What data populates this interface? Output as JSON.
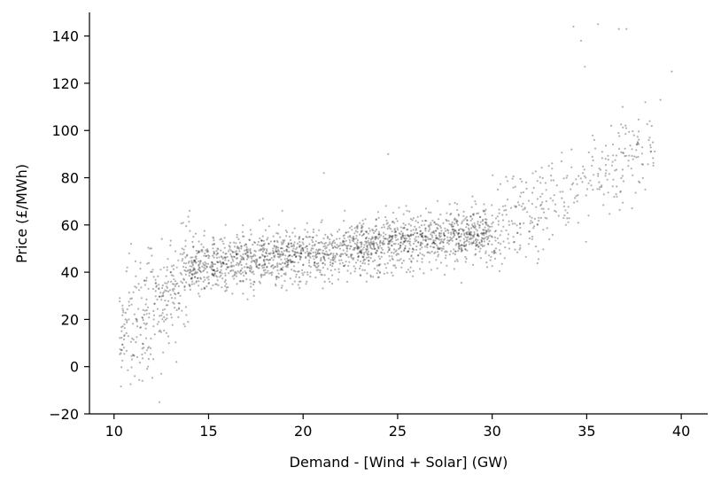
{
  "chart_data": {
    "type": "scatter",
    "title": "",
    "xlabel": "Demand - [Wind + Solar] (GW)",
    "ylabel": "Price (£/MWh)",
    "xlim": [
      8.7,
      41.4
    ],
    "ylim": [
      -20,
      150
    ],
    "xticks": [
      10,
      15,
      20,
      25,
      30,
      35,
      40
    ],
    "yticks": [
      -20,
      0,
      20,
      40,
      60,
      80,
      100,
      120,
      140
    ],
    "xtick_labels": [
      "10",
      "15",
      "20",
      "25",
      "30",
      "35",
      "40"
    ],
    "ytick_labels": [
      "−20",
      "0",
      "20",
      "40",
      "60",
      "80",
      "100",
      "120",
      "140"
    ],
    "spines": "left-bottom",
    "grid": false,
    "marker_color": "#000000",
    "marker_alpha": 0.3,
    "approx_point_count": 2500,
    "points": [
      [
        10.3,
        29
      ],
      [
        10.4,
        15
      ],
      [
        10.5,
        23
      ],
      [
        10.6,
        20
      ],
      [
        10.7,
        42
      ],
      [
        10.8,
        48
      ],
      [
        10.9,
        52
      ],
      [
        11.0,
        5
      ],
      [
        11.1,
        -4
      ],
      [
        11.2,
        20
      ],
      [
        11.3,
        35
      ],
      [
        11.4,
        44
      ],
      [
        11.5,
        -6
      ],
      [
        11.6,
        22
      ],
      [
        11.7,
        12
      ],
      [
        11.8,
        0
      ],
      [
        11.9,
        50
      ],
      [
        12.0,
        47
      ],
      [
        12.1,
        38
      ],
      [
        12.2,
        32
      ],
      [
        12.3,
        18
      ],
      [
        12.4,
        -15
      ],
      [
        12.5,
        -3
      ],
      [
        12.6,
        6
      ],
      [
        12.7,
        28
      ],
      [
        12.8,
        22
      ],
      [
        12.9,
        10
      ],
      [
        13.0,
        40
      ],
      [
        13.1,
        35
      ],
      [
        13.2,
        25
      ],
      [
        13.3,
        2
      ],
      [
        13.4,
        45
      ],
      [
        13.5,
        30
      ],
      [
        13.6,
        50
      ],
      [
        13.7,
        18
      ],
      [
        13.8,
        42
      ],
      [
        14.0,
        66
      ],
      [
        14.2,
        55
      ],
      [
        14.4,
        48
      ],
      [
        14.6,
        40
      ],
      [
        14.8,
        33
      ],
      [
        15.0,
        46
      ],
      [
        15.3,
        52
      ],
      [
        15.6,
        38
      ],
      [
        15.9,
        60
      ],
      [
        16.2,
        44
      ],
      [
        16.5,
        35
      ],
      [
        16.8,
        57
      ],
      [
        17.1,
        47
      ],
      [
        17.4,
        30
      ],
      [
        17.7,
        62
      ],
      [
        18.0,
        41
      ],
      [
        18.3,
        53
      ],
      [
        18.6,
        38
      ],
      [
        18.9,
        66
      ],
      [
        19.2,
        45
      ],
      [
        19.5,
        50
      ],
      [
        19.8,
        36
      ],
      [
        20.1,
        58
      ],
      [
        20.4,
        48
      ],
      [
        20.7,
        42
      ],
      [
        21.0,
        62
      ],
      [
        21.3,
        55
      ],
      [
        21.6,
        47
      ],
      [
        21.9,
        40
      ],
      [
        22.2,
        66
      ],
      [
        22.5,
        51
      ],
      [
        22.8,
        44
      ],
      [
        23.1,
        59
      ],
      [
        23.4,
        48
      ],
      [
        23.7,
        38
      ],
      [
        24.0,
        63
      ],
      [
        24.3,
        52
      ],
      [
        24.6,
        45
      ],
      [
        24.9,
        57
      ],
      [
        25.2,
        42
      ],
      [
        25.5,
        66
      ],
      [
        25.8,
        50
      ],
      [
        26.1,
        55
      ],
      [
        26.4,
        47
      ],
      [
        26.7,
        60
      ],
      [
        27.0,
        52
      ],
      [
        27.3,
        44
      ],
      [
        27.6,
        65
      ],
      [
        27.9,
        58
      ],
      [
        28.2,
        49
      ],
      [
        28.5,
        62
      ],
      [
        28.8,
        54
      ],
      [
        29.1,
        70
      ],
      [
        29.4,
        46
      ],
      [
        29.7,
        57
      ],
      [
        30.0,
        64
      ],
      [
        30.3,
        75
      ],
      [
        30.6,
        53
      ],
      [
        30.9,
        60
      ],
      [
        31.2,
        68
      ],
      [
        31.5,
        56
      ],
      [
        31.8,
        78
      ],
      [
        32.1,
        63
      ],
      [
        32.4,
        71
      ],
      [
        32.7,
        58
      ],
      [
        33.0,
        85
      ],
      [
        33.3,
        66
      ],
      [
        33.6,
        74
      ],
      [
        33.9,
        60
      ],
      [
        34.2,
        92
      ],
      [
        34.5,
        70
      ],
      [
        34.8,
        82
      ],
      [
        35.1,
        64
      ],
      [
        35.4,
        96
      ],
      [
        35.7,
        76
      ],
      [
        36.0,
        88
      ],
      [
        36.3,
        102
      ],
      [
        36.6,
        72
      ],
      [
        36.9,
        110
      ],
      [
        37.2,
        85
      ],
      [
        37.5,
        98
      ],
      [
        37.8,
        78
      ],
      [
        38.1,
        112
      ],
      [
        38.5,
        95
      ],
      [
        38.9,
        113
      ],
      [
        39.5,
        125
      ],
      [
        34.3,
        144
      ],
      [
        35.6,
        145
      ],
      [
        36.7,
        143
      ],
      [
        37.1,
        143
      ],
      [
        34.7,
        138
      ],
      [
        34.9,
        127
      ],
      [
        24.5,
        90
      ],
      [
        21.1,
        82
      ]
    ]
  }
}
